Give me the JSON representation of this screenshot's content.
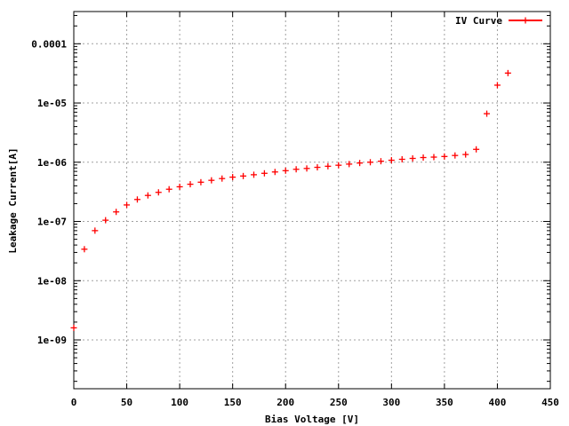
{
  "chart_data": {
    "type": "scatter",
    "title": "",
    "xlabel": "Bias Voltage [V]",
    "ylabel": "Leakage Current[A]",
    "xlim": [
      0,
      450
    ],
    "ylim": [
      1.5e-10,
      0.00035
    ],
    "yscale": "log",
    "grid": true,
    "legend_position": "top-right",
    "x_ticks": [
      {
        "value": 0,
        "label": "0"
      },
      {
        "value": 50,
        "label": "50"
      },
      {
        "value": 100,
        "label": "100"
      },
      {
        "value": 150,
        "label": "150"
      },
      {
        "value": 200,
        "label": "200"
      },
      {
        "value": 250,
        "label": "250"
      },
      {
        "value": 300,
        "label": "300"
      },
      {
        "value": 350,
        "label": "350"
      },
      {
        "value": 400,
        "label": "400"
      },
      {
        "value": 450,
        "label": "450"
      }
    ],
    "y_ticks": [
      {
        "value": 1e-09,
        "label": "1e-09"
      },
      {
        "value": 1e-08,
        "label": "1e-08"
      },
      {
        "value": 1e-07,
        "label": "1e-07"
      },
      {
        "value": 1e-06,
        "label": "1e-06"
      },
      {
        "value": 1e-05,
        "label": "1e-05"
      },
      {
        "value": 0.0001,
        "label": "0.0001"
      }
    ],
    "series": [
      {
        "name": "IV Curve",
        "color": "#ff0000",
        "marker": "plus",
        "x": [
          0,
          10,
          20,
          30,
          40,
          50,
          60,
          70,
          80,
          90,
          100,
          110,
          120,
          130,
          140,
          150,
          160,
          170,
          180,
          190,
          200,
          210,
          220,
          230,
          240,
          250,
          260,
          270,
          280,
          290,
          300,
          310,
          320,
          330,
          340,
          350,
          360,
          370,
          380,
          390,
          400,
          410
        ],
        "y": [
          1.6e-09,
          3.4e-08,
          7e-08,
          1.05e-07,
          1.45e-07,
          1.9e-07,
          2.35e-07,
          2.75e-07,
          3.1e-07,
          3.5e-07,
          3.85e-07,
          4.25e-07,
          4.6e-07,
          4.95e-07,
          5.3e-07,
          5.6e-07,
          5.85e-07,
          6.15e-07,
          6.5e-07,
          6.85e-07,
          7.2e-07,
          7.6e-07,
          7.85e-07,
          8.2e-07,
          8.55e-07,
          8.9e-07,
          9.3e-07,
          9.7e-07,
          1e-06,
          1.04e-06,
          1.08e-06,
          1.12e-06,
          1.16e-06,
          1.2e-06,
          1.22e-06,
          1.25e-06,
          1.3e-06,
          1.35e-06,
          1.65e-06,
          6.6e-06,
          2e-05,
          3.2e-05
        ]
      }
    ]
  }
}
